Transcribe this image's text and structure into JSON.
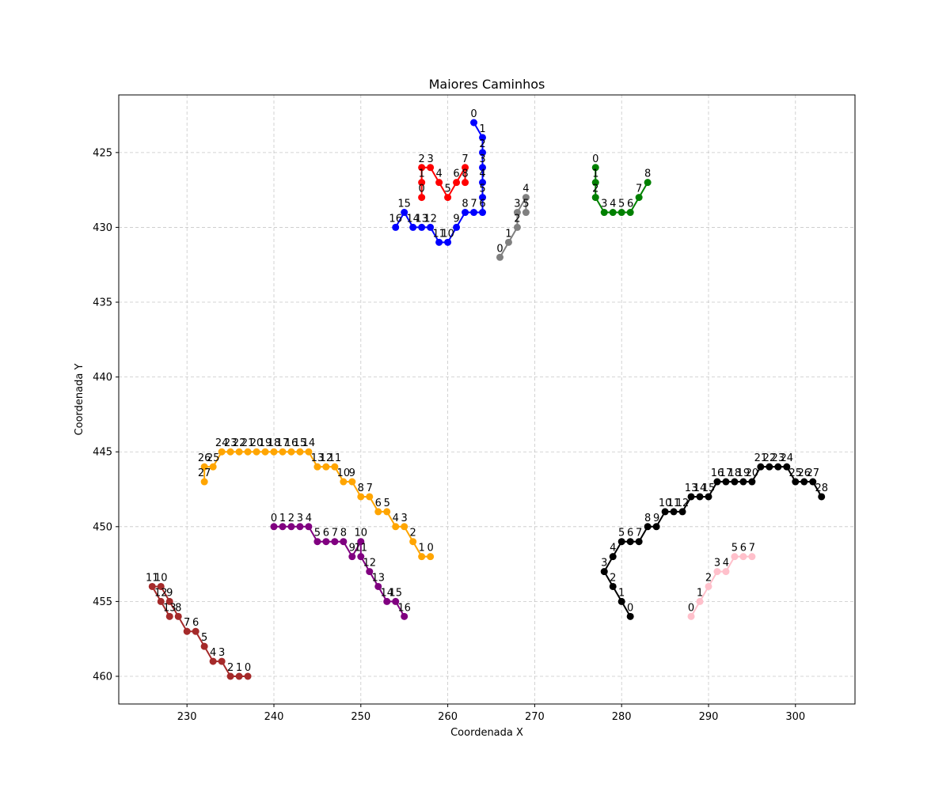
{
  "chart_data": {
    "type": "line",
    "title": "Maiores Caminhos",
    "xlabel": "Coordenada X",
    "ylabel": "Coordenada Y",
    "xlim": [
      222.15,
      306.85
    ],
    "ylim": [
      461.85,
      421.15
    ],
    "y_inverted": true,
    "grid": true,
    "x_ticks": [
      230,
      240,
      250,
      260,
      270,
      280,
      290,
      300
    ],
    "y_ticks": [
      425,
      430,
      435,
      440,
      445,
      450,
      455,
      460
    ],
    "series": [
      {
        "color": "#0000ff",
        "x": [
          263,
          264,
          264,
          264,
          264,
          264,
          264,
          263,
          262,
          261,
          260,
          259,
          258,
          257,
          256,
          255,
          254
        ],
        "y": [
          423,
          424,
          425,
          426,
          427,
          428,
          429,
          429,
          429,
          430,
          431,
          431,
          430,
          430,
          430,
          429,
          430
        ],
        "labels": [
          "0",
          "1",
          "2",
          "3",
          "4",
          "5",
          "6",
          "7",
          "8",
          "9",
          "10",
          "11",
          "12",
          "13",
          "14",
          "15",
          "16"
        ]
      },
      {
        "color": "#ff0000",
        "x": [
          257,
          257,
          257,
          258,
          259,
          260,
          261,
          262,
          262
        ],
        "y": [
          428,
          427,
          426,
          426,
          427,
          428,
          427,
          426,
          427
        ],
        "labels": [
          "0",
          "1",
          "2",
          "3",
          "4",
          "5",
          "6",
          "7",
          "8"
        ]
      },
      {
        "color": "#808080",
        "x": [
          266,
          267,
          268,
          268,
          269,
          269
        ],
        "y": [
          432,
          431,
          430,
          429,
          428,
          429
        ],
        "labels": [
          "0",
          "1",
          "2",
          "3",
          "4",
          "5"
        ]
      },
      {
        "color": "#008000",
        "x": [
          277,
          277,
          277,
          278,
          279,
          280,
          281,
          282,
          283
        ],
        "y": [
          426,
          427,
          428,
          429,
          429,
          429,
          429,
          428,
          427
        ],
        "labels": [
          "0",
          "1",
          "2",
          "3",
          "4",
          "5",
          "6",
          "7",
          "8"
        ]
      },
      {
        "color": "#ffa500",
        "x": [
          258,
          257,
          256,
          255,
          254,
          253,
          252,
          251,
          250,
          249,
          248,
          247,
          246,
          245,
          244,
          243,
          242,
          241,
          240,
          239,
          238,
          237,
          236,
          235,
          234,
          233,
          232,
          232
        ],
        "y": [
          452,
          452,
          451,
          450,
          450,
          449,
          449,
          448,
          448,
          447,
          447,
          446,
          446,
          446,
          445,
          445,
          445,
          445,
          445,
          445,
          445,
          445,
          445,
          445,
          445,
          446,
          446,
          447
        ],
        "labels": [
          "0",
          "1",
          "2",
          "3",
          "4",
          "5",
          "6",
          "7",
          "8",
          "9",
          "10",
          "11",
          "12",
          "13",
          "14",
          "15",
          "16",
          "17",
          "18",
          "19",
          "20",
          "21",
          "22",
          "23",
          "24",
          "25",
          "26",
          "27"
        ]
      },
      {
        "color": "#800080",
        "x": [
          240,
          241,
          242,
          243,
          244,
          245,
          246,
          247,
          248,
          249,
          250,
          250,
          251,
          252,
          253,
          254,
          255
        ],
        "y": [
          450,
          450,
          450,
          450,
          450,
          451,
          451,
          451,
          451,
          452,
          451,
          452,
          453,
          454,
          455,
          455,
          456
        ],
        "labels": [
          "0",
          "1",
          "2",
          "3",
          "4",
          "5",
          "6",
          "7",
          "8",
          "9",
          "10",
          "11",
          "12",
          "13",
          "14",
          "15",
          "16"
        ]
      },
      {
        "color": "#a52a2a",
        "x": [
          237,
          236,
          235,
          234,
          233,
          232,
          231,
          230,
          229,
          228,
          227,
          226,
          227,
          228
        ],
        "y": [
          460,
          460,
          460,
          459,
          459,
          458,
          457,
          457,
          456,
          455,
          454,
          454,
          455,
          456
        ],
        "labels": [
          "0",
          "1",
          "2",
          "3",
          "4",
          "5",
          "6",
          "7",
          "8",
          "9",
          "10",
          "11",
          "12",
          "13"
        ]
      },
      {
        "color": "#000000",
        "x": [
          281,
          280,
          279,
          278,
          279,
          280,
          281,
          282,
          283,
          284,
          285,
          286,
          287,
          288,
          289,
          290,
          291,
          292,
          293,
          294,
          295,
          296,
          297,
          298,
          299,
          300,
          301,
          302,
          303
        ],
        "y": [
          456,
          455,
          454,
          453,
          452,
          451,
          451,
          451,
          450,
          450,
          449,
          449,
          449,
          448,
          448,
          448,
          447,
          447,
          447,
          447,
          447,
          446,
          446,
          446,
          446,
          447,
          447,
          447,
          448
        ],
        "labels": [
          "0",
          "1",
          "2",
          "3",
          "4",
          "5",
          "6",
          "7",
          "8",
          "9",
          "10",
          "11",
          "12",
          "13",
          "14",
          "15",
          "16",
          "17",
          "18",
          "19",
          "20",
          "21",
          "22",
          "23",
          "24",
          "25",
          "26",
          "27",
          "28"
        ]
      },
      {
        "color": "#ffc0cb",
        "x": [
          288,
          289,
          290,
          291,
          292,
          293,
          294,
          295
        ],
        "y": [
          456,
          455,
          454,
          453,
          453,
          452,
          452,
          452
        ],
        "labels": [
          "0",
          "1",
          "2",
          "3",
          "4",
          "5",
          "6",
          "7"
        ]
      }
    ]
  }
}
